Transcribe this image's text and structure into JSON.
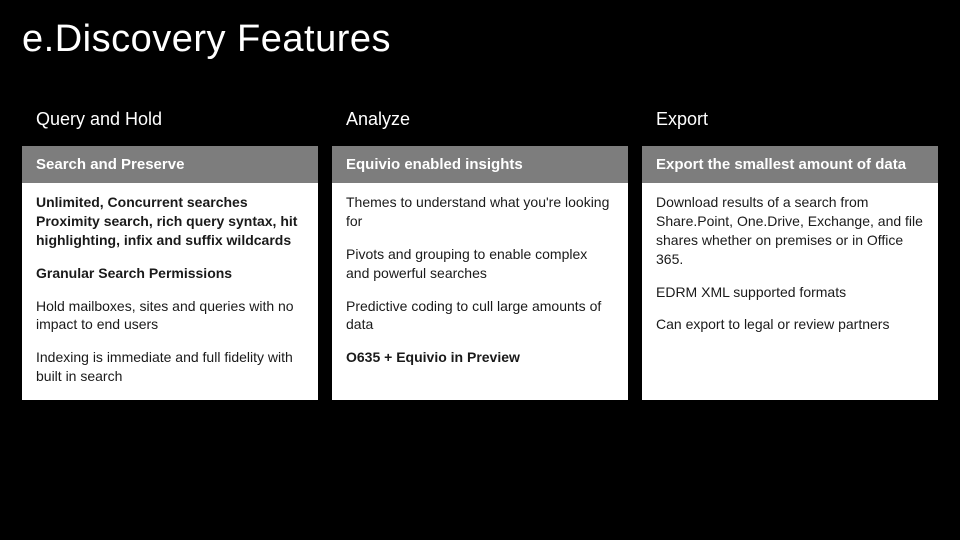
{
  "title": "e.Discovery Features",
  "columns": [
    {
      "header": "Query and Hold",
      "sub": "Search and Preserve",
      "body": [
        {
          "text": "Unlimited, Concurrent searches Proximity search, rich query syntax, hit highlighting, infix and suffix wildcards",
          "bold": true
        },
        {
          "text": "Granular Search Permissions",
          "bold": true
        },
        {
          "text": "Hold mailboxes, sites and queries with no impact to end users",
          "bold": false
        },
        {
          "text": "Indexing is immediate and full fidelity with built in search",
          "bold": false
        }
      ]
    },
    {
      "header": "Analyze",
      "sub": "Equivio enabled insights",
      "body": [
        {
          "text": "Themes to understand what you're looking for",
          "bold": false
        },
        {
          "text": "Pivots and grouping to enable complex and powerful searches",
          "bold": false
        },
        {
          "text": "Predictive coding to cull large amounts of data",
          "bold": false
        },
        {
          "text": "O635 + Equivio in Preview",
          "bold": true
        }
      ]
    },
    {
      "header": "Export",
      "sub": "Export the smallest amount of data",
      "body": [
        {
          "text": "Download results of a search from Share.Point, One.Drive, Exchange, and file shares whether on premises or in Office 365.",
          "bold": false
        },
        {
          "text": "EDRM XML supported formats",
          "bold": false
        },
        {
          "text": "Can export to legal or review partners",
          "bold": false
        }
      ]
    }
  ]
}
